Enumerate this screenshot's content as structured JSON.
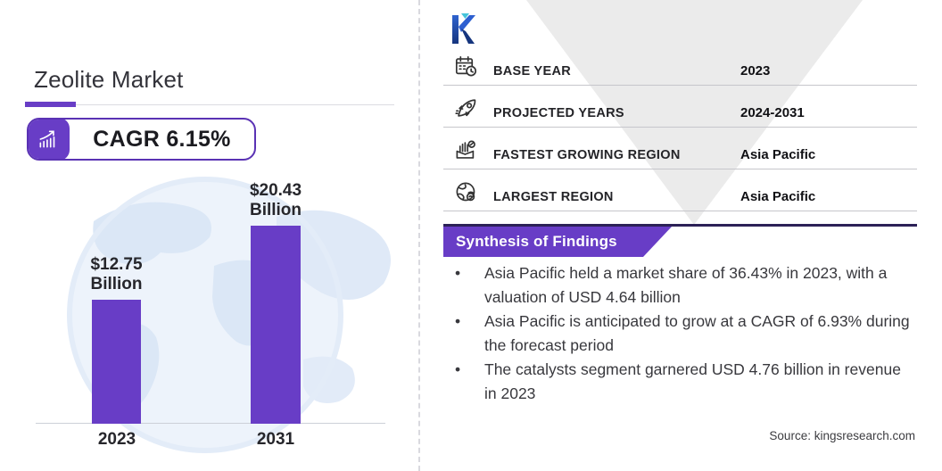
{
  "header": {
    "title": "Zeolite Market",
    "cagr_badge": "CAGR 6.15%"
  },
  "chart_data": {
    "type": "bar",
    "title": "Zeolite Market size by year",
    "categories": [
      "2023",
      "2031"
    ],
    "values": [
      12.75,
      20.43
    ],
    "unit": "USD Billion",
    "bar_labels": [
      [
        "$12.75",
        "Billion"
      ],
      [
        "$20.43",
        "Billion"
      ]
    ],
    "ylim": [
      0,
      20.43
    ],
    "bar_color": "#683dc6",
    "legend": "none",
    "grid": false
  },
  "info_table": {
    "rows": [
      {
        "icon": "calendar-icon",
        "label": "BASE YEAR",
        "value": "2023"
      },
      {
        "icon": "rocket-icon",
        "label": "PROJECTED YEARS",
        "value": "2024-2031"
      },
      {
        "icon": "growth-region-icon",
        "label": "FASTEST GROWING REGION",
        "value": "Asia Pacific"
      },
      {
        "icon": "globe-icon",
        "label": "LARGEST REGION",
        "value": "Asia Pacific"
      }
    ]
  },
  "findings": {
    "title": "Synthesis of Findings",
    "bullets": [
      "Asia Pacific held a market share of 36.43% in 2023, with a valuation of USD 4.64 billion",
      "Asia Pacific is anticipated to grow at a CAGR of 6.93% during the forecast period",
      "The catalysts segment garnered USD 4.76 billion in revenue in 2023"
    ]
  },
  "footer": {
    "source": "Source:  kingsresearch.com"
  },
  "brand": {
    "logo_letter": "K"
  },
  "colors": {
    "accent_purple": "#683dc6",
    "accent_dark": "#5a32b4",
    "dark_purple_line": "#2c2157",
    "triangle_gray": "#ebebeb",
    "map_blue": "#dbe7f6"
  }
}
